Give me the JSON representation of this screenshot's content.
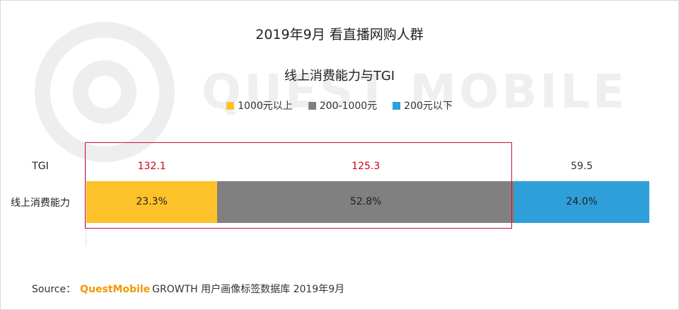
{
  "main_title": "2019年9月 看直播网购人群",
  "chart_data": {
    "type": "bar",
    "stacked": true,
    "orientation": "horizontal",
    "title": "线上消费能力与TGI",
    "categories": [
      "线上消费能力"
    ],
    "tgi_row_label": "TGI",
    "legend_position": "top",
    "series": [
      {
        "name": "1000元以上",
        "values": [
          23.3
        ],
        "label": "23.3%",
        "tgi": 132.1,
        "tgi_label": "132.1",
        "color": "#fdc22a",
        "tgi_color": "#d0021b"
      },
      {
        "name": "200-1000元",
        "values": [
          52.8
        ],
        "label": "52.8%",
        "tgi": 125.3,
        "tgi_label": "125.3",
        "color": "#808080",
        "tgi_color": "#d0021b"
      },
      {
        "name": "200元以下",
        "values": [
          24.0
        ],
        "label": "24.0%",
        "tgi": 59.5,
        "tgi_label": "59.5",
        "color": "#2e9fd8",
        "tgi_color": "#333333"
      }
    ],
    "highlight_series": [
      "1000元以上",
      "200-1000元"
    ],
    "highlight_color": "#c8102e"
  },
  "source": {
    "prefix": "Source：",
    "brand": "QuestMobile",
    "text": "GROWTH 用户画像标签数据库 2019年9月",
    "brand_color": "#f39800"
  },
  "watermark": {
    "text": "QUEST MOBILE"
  }
}
